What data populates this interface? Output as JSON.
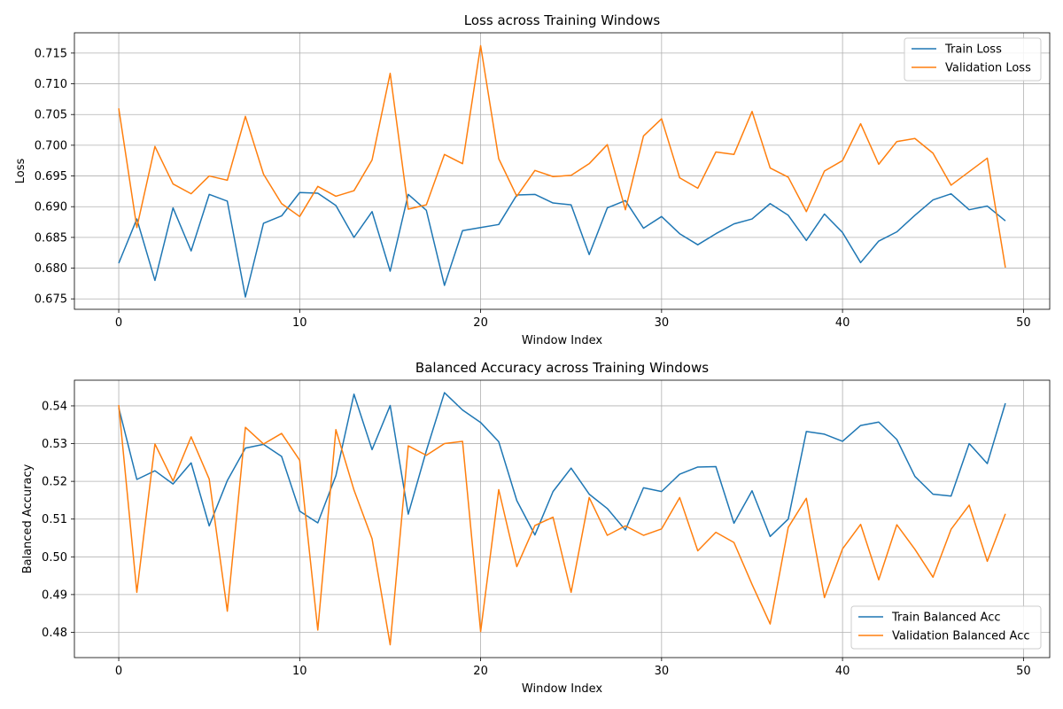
{
  "chart_data": [
    {
      "type": "line",
      "title": "Loss across Training Windows",
      "xlabel": "Window Index",
      "ylabel": "Loss",
      "xlim": [
        -2.45,
        51.45
      ],
      "ylim": [
        0.6733,
        0.7183
      ],
      "xticks": [
        0,
        10,
        20,
        30,
        40,
        50
      ],
      "yticks": [
        0.675,
        0.68,
        0.685,
        0.69,
        0.695,
        0.7,
        0.705,
        0.71,
        0.715
      ],
      "ytick_decimals": 3,
      "grid": true,
      "legend_position": "upper right",
      "x": [
        0,
        1,
        2,
        3,
        4,
        5,
        6,
        7,
        8,
        9,
        10,
        11,
        12,
        13,
        14,
        15,
        16,
        17,
        18,
        19,
        20,
        21,
        22,
        23,
        24,
        25,
        26,
        27,
        28,
        29,
        30,
        31,
        32,
        33,
        34,
        35,
        36,
        37,
        38,
        39,
        40,
        41,
        42,
        43,
        44,
        45,
        46,
        47,
        48,
        49
      ],
      "series": [
        {
          "name": "Train Loss",
          "color": "#1f77b4",
          "values": [
            0.6808,
            0.688,
            0.678,
            0.6898,
            0.6828,
            0.692,
            0.6909,
            0.6753,
            0.6873,
            0.6885,
            0.6923,
            0.6922,
            0.6902,
            0.685,
            0.6892,
            0.6795,
            0.692,
            0.6894,
            0.6772,
            0.6861,
            0.6866,
            0.6871,
            0.6919,
            0.692,
            0.6906,
            0.6903,
            0.6822,
            0.6898,
            0.691,
            0.6865,
            0.6884,
            0.6856,
            0.6838,
            0.6856,
            0.6872,
            0.688,
            0.6905,
            0.6886,
            0.6845,
            0.6888,
            0.6858,
            0.6809,
            0.6844,
            0.6859,
            0.6886,
            0.6911,
            0.6921,
            0.6895,
            0.6901,
            0.6877
          ]
        },
        {
          "name": "Validation Loss",
          "color": "#ff7f0e",
          "values": [
            0.706,
            0.6866,
            0.6998,
            0.6937,
            0.6921,
            0.695,
            0.6943,
            0.7047,
            0.6953,
            0.6905,
            0.6884,
            0.6933,
            0.6917,
            0.6926,
            0.6976,
            0.7117,
            0.6896,
            0.6903,
            0.6985,
            0.697,
            0.7162,
            0.6978,
            0.6917,
            0.6959,
            0.6949,
            0.6951,
            0.697,
            0.7001,
            0.6895,
            0.7015,
            0.7043,
            0.6947,
            0.693,
            0.6989,
            0.6985,
            0.7055,
            0.6963,
            0.6948,
            0.6892,
            0.6958,
            0.6975,
            0.7035,
            0.6969,
            0.7006,
            0.7011,
            0.6987,
            0.6935,
            0.6957,
            0.6979,
            0.6801
          ]
        }
      ]
    },
    {
      "type": "line",
      "title": "Balanced Accuracy across Training Windows",
      "xlabel": "Window Index",
      "ylabel": "Balanced Accuracy",
      "xlim": [
        -2.45,
        51.45
      ],
      "ylim": [
        0.4733,
        0.5468
      ],
      "xticks": [
        0,
        10,
        20,
        30,
        40,
        50
      ],
      "yticks": [
        0.48,
        0.49,
        0.5,
        0.51,
        0.52,
        0.53,
        0.54
      ],
      "ytick_decimals": 2,
      "grid": true,
      "legend_position": "lower right",
      "x": [
        0,
        1,
        2,
        3,
        4,
        5,
        6,
        7,
        8,
        9,
        10,
        11,
        12,
        13,
        14,
        15,
        16,
        17,
        18,
        19,
        20,
        21,
        22,
        23,
        24,
        25,
        26,
        27,
        28,
        29,
        30,
        31,
        32,
        33,
        34,
        35,
        36,
        37,
        38,
        39,
        40,
        41,
        42,
        43,
        44,
        45,
        46,
        47,
        48,
        49
      ],
      "series": [
        {
          "name": "Train Balanced Acc",
          "color": "#1f77b4",
          "values": [
            0.5395,
            0.5205,
            0.5228,
            0.5193,
            0.5249,
            0.5082,
            0.5202,
            0.5288,
            0.5298,
            0.5266,
            0.5121,
            0.509,
            0.5215,
            0.5431,
            0.5284,
            0.5401,
            0.5113,
            0.5281,
            0.5435,
            0.5389,
            0.5356,
            0.5305,
            0.5149,
            0.5058,
            0.5173,
            0.5235,
            0.5166,
            0.5128,
            0.5071,
            0.5183,
            0.5173,
            0.5219,
            0.5238,
            0.5239,
            0.5089,
            0.5175,
            0.5054,
            0.51,
            0.5332,
            0.5325,
            0.5306,
            0.5348,
            0.5357,
            0.5311,
            0.5213,
            0.5166,
            0.5161,
            0.53,
            0.5247,
            0.5407
          ]
        },
        {
          "name": "Validation Balanced Acc",
          "color": "#ff7f0e",
          "values": [
            0.5402,
            0.4906,
            0.5299,
            0.5201,
            0.5318,
            0.5206,
            0.4856,
            0.5343,
            0.5299,
            0.5327,
            0.5256,
            0.4806,
            0.5337,
            0.5177,
            0.5048,
            0.4767,
            0.5294,
            0.5269,
            0.53,
            0.5306,
            0.4802,
            0.5178,
            0.4974,
            0.5083,
            0.5105,
            0.4906,
            0.5157,
            0.5057,
            0.5082,
            0.5057,
            0.5074,
            0.5157,
            0.5016,
            0.5065,
            0.5038,
            0.4927,
            0.4822,
            0.5078,
            0.5155,
            0.4892,
            0.5021,
            0.5086,
            0.4939,
            0.5085,
            0.502,
            0.4946,
            0.5073,
            0.5137,
            0.4988,
            0.5114
          ]
        }
      ]
    }
  ]
}
